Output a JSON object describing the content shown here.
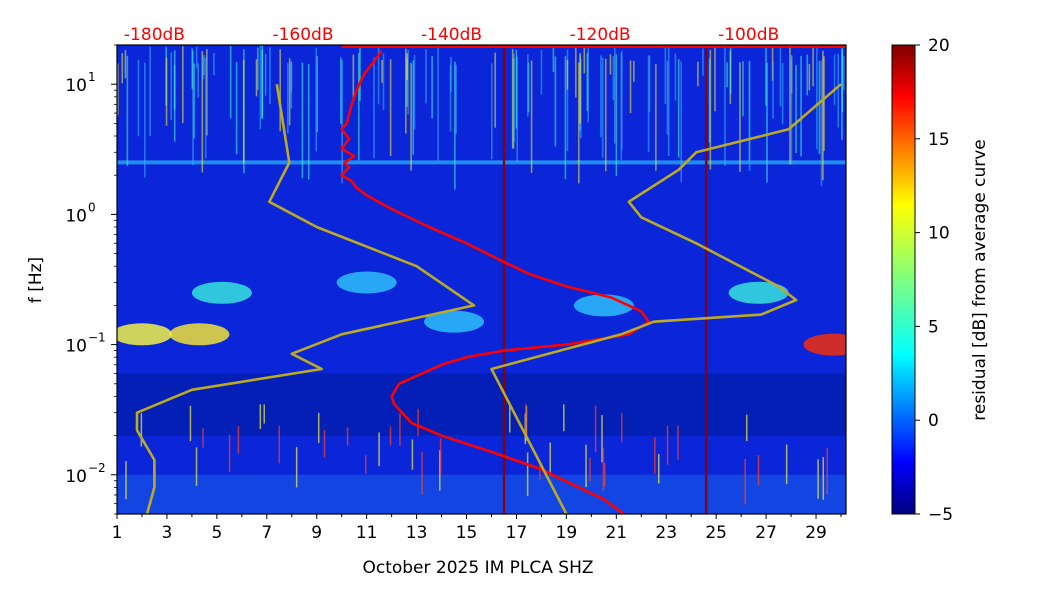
{
  "chart_data": {
    "type": "heatmap",
    "title": "",
    "xlabel": "October 2025 IM PLCA  SHZ",
    "ylabel": "f [Hz]",
    "x_range_days": [
      1,
      30.2
    ],
    "y_range_hz": [
      0.005,
      20
    ],
    "y_scale": "log",
    "x_tick_values": [
      1,
      3,
      5,
      7,
      9,
      11,
      13,
      15,
      17,
      19,
      21,
      23,
      25,
      27,
      29
    ],
    "x_tick_labels": [
      "1",
      "3",
      "5",
      "7",
      "9",
      "11",
      "13",
      "15",
      "17",
      "19",
      "21",
      "23",
      "25",
      "27",
      "29"
    ],
    "y_ticks": [
      {
        "value": 0.01,
        "base": "10",
        "exp": "−2"
      },
      {
        "value": 0.1,
        "base": "10",
        "exp": "−1"
      },
      {
        "value": 1,
        "base": "10",
        "exp": "0"
      },
      {
        "value": 10,
        "base": "10",
        "exp": "1"
      }
    ],
    "colorbar": {
      "label": "residual [dB] from average curve",
      "range": [
        -5,
        20
      ],
      "tick_values": [
        -5,
        0,
        5,
        10,
        15,
        20
      ],
      "tick_labels": [
        "−5",
        "0",
        "5",
        "10",
        "15",
        "20"
      ],
      "colormap": "jet"
    },
    "db_scale_labels": [
      {
        "x": 2.5,
        "text": "-180dB"
      },
      {
        "x": 8.45,
        "text": "-160dB"
      },
      {
        "x": 14.4,
        "text": "-140dB"
      },
      {
        "x": 20.35,
        "text": "-120dB"
      },
      {
        "x": 26.3,
        "text": "-100dB"
      }
    ],
    "vertical_markers": [
      {
        "x": 16.5,
        "color": "#8b0000"
      },
      {
        "x": 24.6,
        "color": "#8b0000"
      }
    ],
    "series": [
      {
        "color": "#ff0000",
        "x": [
          11.6,
          11.3,
          10.9,
          10.6,
          10.4,
          10.2,
          10.0,
          10.3,
          10.0,
          10.5,
          10.1,
          10.3,
          10.0,
          10.4,
          10.6,
          11.0,
          12.0,
          13.5,
          15.0,
          16.3,
          17.5,
          19.0,
          20.8,
          22.0,
          22.3,
          21.5,
          19.0,
          16.5,
          15.0,
          14.0,
          12.3,
          12.0,
          12.1,
          12.8,
          14.0,
          16.0,
          18.0,
          19.5,
          20.5,
          21.3
        ],
        "y": [
          18,
          15,
          12,
          9,
          7,
          5,
          4.5,
          3.8,
          3.2,
          2.8,
          2.5,
          2.3,
          2.0,
          1.8,
          1.6,
          1.4,
          1.1,
          0.8,
          0.6,
          0.45,
          0.35,
          0.28,
          0.23,
          0.18,
          0.15,
          0.12,
          0.1,
          0.09,
          0.08,
          0.07,
          0.05,
          0.04,
          0.035,
          0.025,
          0.02,
          0.015,
          0.011,
          0.008,
          0.0065,
          0.005
        ]
      },
      {
        "color": "#bbaa22",
        "x": [
          7.4,
          7.9,
          7.1,
          9.0,
          13.0,
          15.3,
          10.0,
          8.0,
          9.2,
          4.0,
          1.8,
          1.8,
          2.5,
          2.5,
          2.2
        ],
        "y": [
          10,
          2.5,
          1.25,
          0.8,
          0.4,
          0.2,
          0.12,
          0.085,
          0.065,
          0.045,
          0.03,
          0.022,
          0.013,
          0.008,
          0.005
        ]
      },
      {
        "color": "#bbaa22",
        "x": [
          30.0,
          27.9,
          24.2,
          23.5,
          21.5,
          22.0,
          24.2,
          27.5,
          28.2,
          26.8,
          22.5,
          21.2,
          16.0,
          19.0
        ],
        "y": [
          10,
          4.5,
          3.0,
          2.2,
          1.25,
          0.95,
          0.6,
          0.28,
          0.22,
          0.17,
          0.15,
          0.12,
          0.065,
          0.005
        ]
      }
    ]
  }
}
